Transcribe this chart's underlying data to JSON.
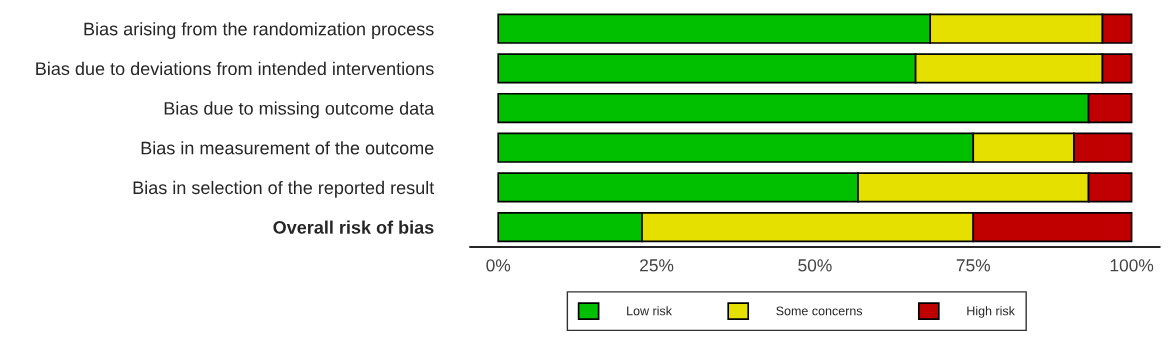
{
  "chart_data": {
    "type": "bar",
    "orientation": "horizontal",
    "stacked": true,
    "categories": [
      "Bias arising from the randomization process",
      "Bias due to deviations from intended interventions",
      "Bias due to missing outcome data",
      "Bias in measurement of the outcome",
      "Bias in selection of the reported result",
      "Overall risk of bias"
    ],
    "series": [
      {
        "name": "Low risk",
        "color": "#00c000",
        "values": [
          68.2,
          65.9,
          93.2,
          75.0,
          56.8,
          22.7
        ]
      },
      {
        "name": "Some concerns",
        "color": "#e5e000",
        "values": [
          27.2,
          29.5,
          null,
          15.9,
          36.4,
          52.3
        ]
      },
      {
        "name": "High risk",
        "color": "#c00000",
        "values": [
          4.6,
          4.6,
          6.8,
          9.1,
          6.8,
          25.0
        ]
      }
    ],
    "xlim": [
      -4.4,
      104.4
    ],
    "xticks": [
      {
        "value": 0,
        "label": "0%"
      },
      {
        "value": 25,
        "label": "25%"
      },
      {
        "value": 50,
        "label": "50%"
      },
      {
        "value": 75,
        "label": "75%"
      },
      {
        "value": 100,
        "label": "100%"
      }
    ],
    "legend": "bottom",
    "grid": false
  }
}
